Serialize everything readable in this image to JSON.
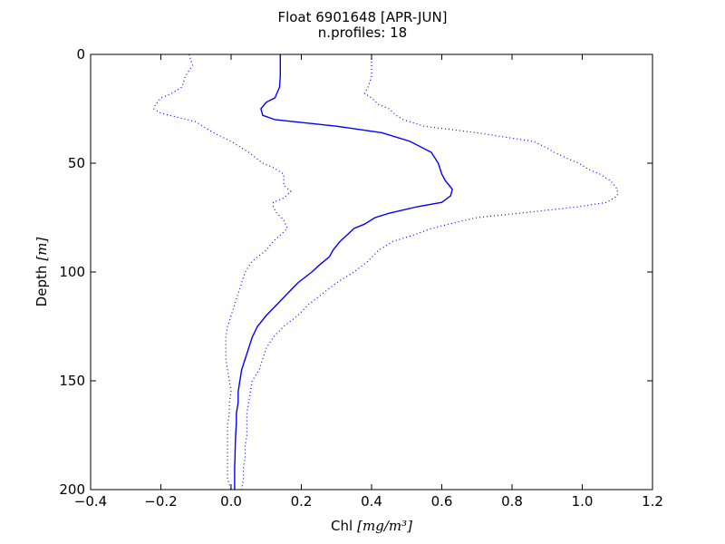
{
  "chart_data": {
    "type": "line",
    "title": "Float 6901648 [APR-JUN]",
    "subtitle": "n.profiles: 18",
    "xlabel": "Chl",
    "xlabel_unit": "[mg/m³]",
    "ylabel": "Depth",
    "ylabel_unit": "[m]",
    "xlim": [
      -0.4,
      1.2
    ],
    "ylim": [
      200,
      0
    ],
    "y_inverted": true,
    "grid": false,
    "x_ticks": [
      "−0.4",
      "−0.2",
      "0.0",
      "0.2",
      "0.4",
      "0.6",
      "0.8",
      "1.0",
      "1.2"
    ],
    "y_ticks": [
      "0",
      "50",
      "100",
      "150",
      "200"
    ],
    "series": [
      {
        "style": "solid",
        "color": "#0000ff",
        "depth": [
          0,
          5,
          10,
          15,
          20,
          22,
          25,
          28,
          30,
          33,
          36,
          40,
          45,
          50,
          55,
          58,
          60,
          62,
          65,
          68,
          70,
          73,
          75,
          78,
          80,
          83,
          86,
          90,
          93,
          97,
          100,
          105,
          110,
          115,
          120,
          125,
          130,
          135,
          140,
          145,
          150,
          155,
          160,
          165,
          170,
          175,
          180,
          185,
          190,
          195,
          200
        ],
        "chl": [
          0.14,
          0.14,
          0.14,
          0.138,
          0.125,
          0.1,
          0.085,
          0.09,
          0.125,
          0.3,
          0.43,
          0.51,
          0.57,
          0.59,
          0.6,
          0.61,
          0.62,
          0.63,
          0.625,
          0.6,
          0.53,
          0.45,
          0.41,
          0.38,
          0.35,
          0.33,
          0.31,
          0.29,
          0.28,
          0.25,
          0.23,
          0.19,
          0.16,
          0.13,
          0.1,
          0.075,
          0.06,
          0.05,
          0.04,
          0.03,
          0.025,
          0.02,
          0.02,
          0.015,
          0.015,
          0.013,
          0.012,
          0.011,
          0.01,
          0.01,
          0.01
        ]
      },
      {
        "style": "dotted",
        "color": "#0000ff",
        "depth": [
          0,
          5,
          10,
          15,
          18,
          20,
          23,
          25,
          27,
          29,
          31,
          33,
          36,
          40,
          45,
          50,
          52,
          55,
          58,
          60,
          63,
          66,
          68,
          70,
          73,
          76,
          80,
          83,
          86,
          90,
          95,
          100,
          105,
          110,
          115,
          120,
          125,
          130,
          135,
          140,
          145,
          150,
          155,
          160,
          165,
          170,
          175,
          180,
          185,
          190,
          195,
          200
        ],
        "chl": [
          -0.12,
          -0.11,
          -0.13,
          -0.14,
          -0.17,
          -0.2,
          -0.215,
          -0.22,
          -0.2,
          -0.15,
          -0.1,
          -0.08,
          -0.05,
          0.0,
          0.05,
          0.09,
          0.12,
          0.15,
          0.15,
          0.15,
          0.17,
          0.15,
          0.12,
          0.12,
          0.13,
          0.15,
          0.16,
          0.14,
          0.12,
          0.1,
          0.06,
          0.04,
          0.03,
          0.02,
          0.01,
          0.0,
          -0.01,
          -0.015,
          -0.015,
          -0.015,
          -0.01,
          -0.005,
          0.0,
          -0.005,
          -0.005,
          -0.01,
          -0.01,
          -0.01,
          -0.01,
          -0.01,
          -0.01,
          0.0
        ]
      },
      {
        "style": "dotted",
        "color": "#0000ff",
        "depth": [
          0,
          5,
          10,
          15,
          18,
          20,
          23,
          25,
          28,
          30,
          33,
          36,
          40,
          43,
          45,
          48,
          50,
          53,
          55,
          58,
          60,
          62,
          65,
          68,
          70,
          73,
          75,
          78,
          80,
          83,
          86,
          90,
          95,
          100,
          105,
          110,
          115,
          120,
          125,
          130,
          135,
          140,
          145,
          150,
          155,
          160,
          165,
          170,
          175,
          180,
          185,
          190,
          195,
          200
        ],
        "chl": [
          0.4,
          0.4,
          0.4,
          0.39,
          0.38,
          0.4,
          0.42,
          0.45,
          0.47,
          0.49,
          0.55,
          0.7,
          0.86,
          0.9,
          0.92,
          0.96,
          0.99,
          1.02,
          1.05,
          1.08,
          1.09,
          1.1,
          1.1,
          1.07,
          0.99,
          0.82,
          0.7,
          0.62,
          0.57,
          0.52,
          0.46,
          0.42,
          0.39,
          0.35,
          0.3,
          0.26,
          0.22,
          0.19,
          0.15,
          0.12,
          0.1,
          0.09,
          0.08,
          0.06,
          0.055,
          0.05,
          0.045,
          0.045,
          0.045,
          0.04,
          0.04,
          0.035,
          0.035,
          0.03
        ]
      }
    ]
  }
}
